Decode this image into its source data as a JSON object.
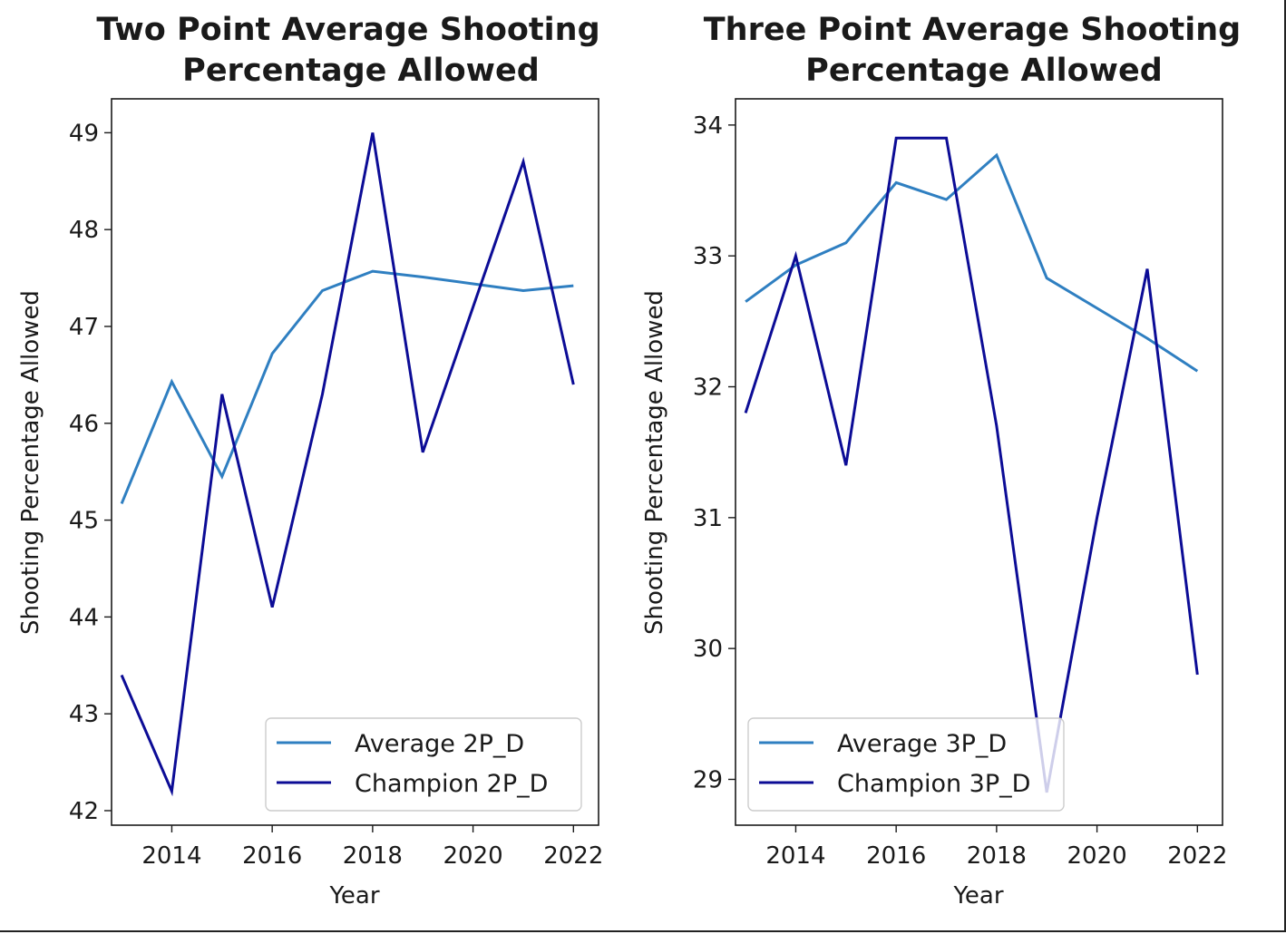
{
  "chart_data": [
    {
      "type": "line",
      "title_line1": "Two Point Average Shooting",
      "title_line2": "Percentage Allowed",
      "xlabel": "Year",
      "ylabel": "Shooting Percentage Allowed",
      "xlim": [
        2012.8,
        2022.5
      ],
      "ylim": [
        41.85,
        49.35
      ],
      "xticks": [
        2014,
        2016,
        2018,
        2020,
        2022
      ],
      "yticks": [
        42,
        43,
        44,
        45,
        46,
        47,
        48,
        49
      ],
      "legend_position": "lower-right",
      "x": [
        2013,
        2014,
        2015,
        2016,
        2017,
        2018,
        2019,
        2020,
        2021,
        2022
      ],
      "series": [
        {
          "name": "Average 2P_D",
          "color": "#2f7fc1",
          "values": [
            45.17,
            46.43,
            45.45,
            46.72,
            47.37,
            47.57,
            47.51,
            47.44,
            47.37,
            47.42
          ]
        },
        {
          "name": "Champion 2P_D",
          "color": "#0c0c96",
          "values": [
            43.4,
            42.2,
            46.3,
            44.1,
            46.3,
            49.0,
            45.7,
            47.2,
            48.7,
            46.4
          ]
        }
      ]
    },
    {
      "type": "line",
      "title_line1": "Three Point Average Shooting",
      "title_line2": "Percentage Allowed",
      "xlabel": "Year",
      "ylabel": "Shooting Percentage Allowed",
      "xlim": [
        2012.8,
        2022.5
      ],
      "ylim": [
        28.65,
        34.2
      ],
      "xticks": [
        2014,
        2016,
        2018,
        2020,
        2022
      ],
      "yticks": [
        29,
        30,
        31,
        32,
        33,
        34
      ],
      "legend_position": "lower-left",
      "x": [
        2013,
        2014,
        2015,
        2016,
        2017,
        2018,
        2019,
        2020,
        2021,
        2022
      ],
      "series": [
        {
          "name": "Average 3P_D",
          "color": "#2f7fc1",
          "values": [
            32.65,
            32.93,
            33.1,
            33.56,
            33.43,
            33.77,
            32.83,
            32.6,
            32.37,
            32.12
          ]
        },
        {
          "name": "Champion 3P_D",
          "color": "#0c0c96",
          "values": [
            31.8,
            33.0,
            31.4,
            33.9,
            33.9,
            31.7,
            28.9,
            31.0,
            32.9,
            29.8
          ]
        }
      ]
    }
  ]
}
